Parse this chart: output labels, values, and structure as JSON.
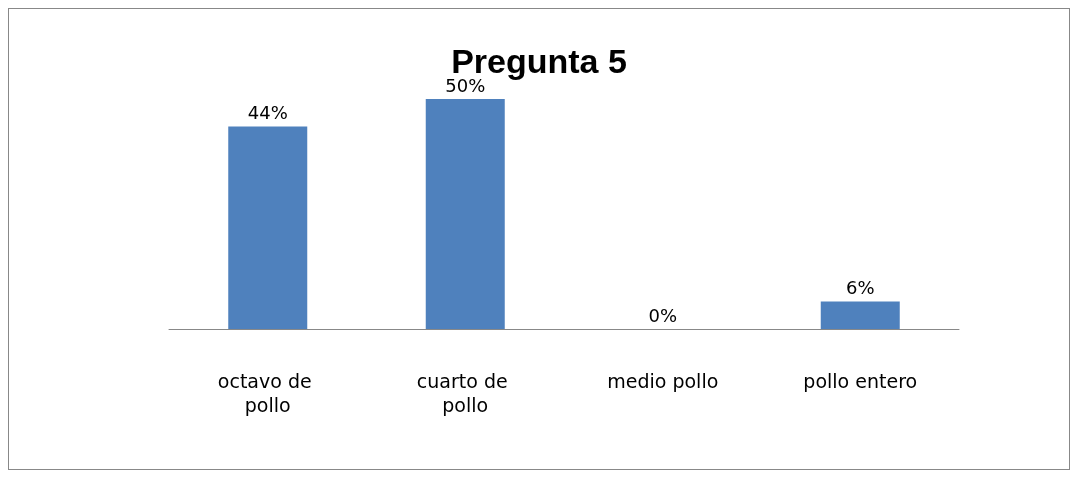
{
  "chart_data": {
    "type": "bar",
    "title": "Pregunta 5",
    "categories": [
      "octavo de pollo",
      "cuarto de pollo",
      "medio pollo",
      "pollo entero"
    ],
    "values": [
      44,
      50,
      0,
      6
    ],
    "value_labels": [
      "44%",
      "50%",
      "0%",
      "6%"
    ],
    "color": "#4f81bd"
  }
}
